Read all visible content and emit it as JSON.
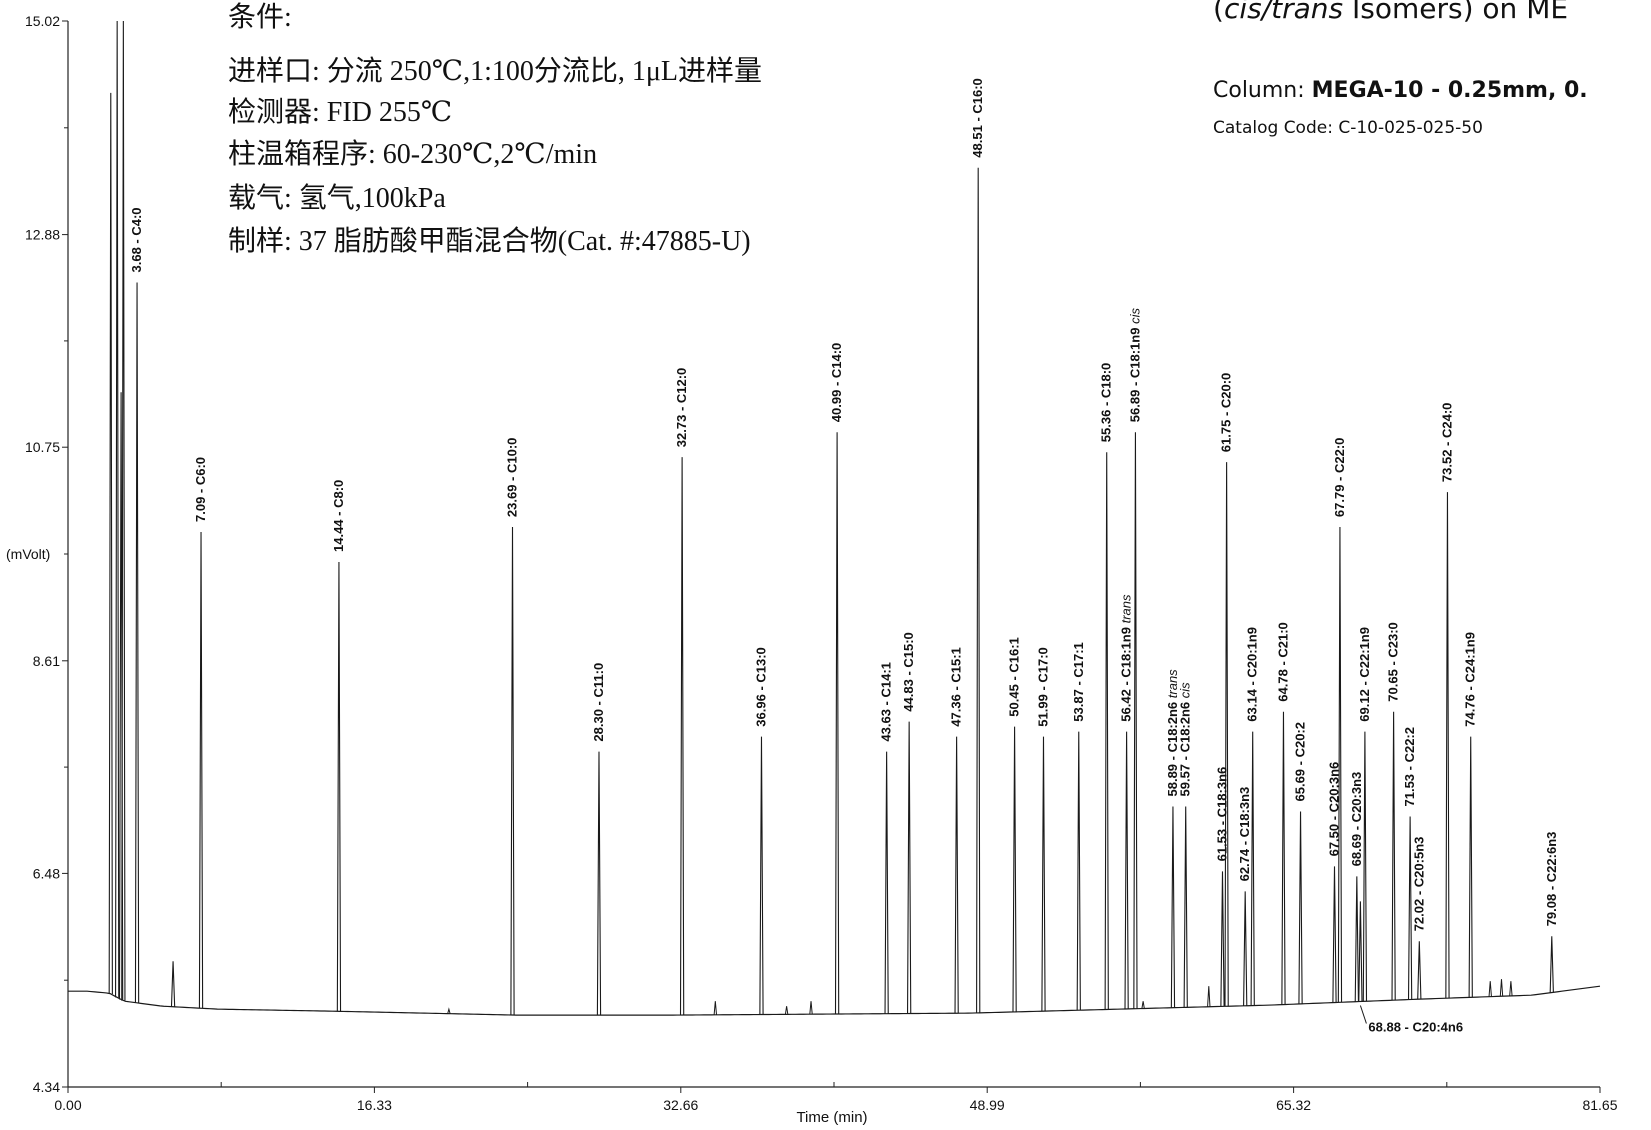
{
  "conditions": {
    "heading": "条件:",
    "lines": [
      "进样口: 分流 250℃,1:100分流比, 1μL进样量",
      "检测器: FID 255℃",
      "柱温箱程序: 60-230℃,2℃/min",
      "载气: 氢气,100kPa",
      "制样: 37 脂肪酸甲酯混合物(Cat. #:47885-U)"
    ]
  },
  "header": {
    "title_prefix": "(",
    "title_cis": "cis",
    "title_slash": "/",
    "title_trans": "trans",
    "title_rest": " Isomers) on ME",
    "column_label": "Column: ",
    "column_value": "MEGA-10 - 0.25mm, 0.",
    "catalog": "Catalog Code: C-10-025-025-50"
  },
  "chart_data": {
    "type": "line",
    "title": "",
    "xlabel": "Time (min)",
    "ylabel": "(mVolt)",
    "xlim": [
      0.0,
      81.65
    ],
    "ylim": [
      4.34,
      15.02
    ],
    "x_tick_labels": [
      "0.00",
      "16.33",
      "32.66",
      "48.99",
      "65.32",
      "81.65"
    ],
    "x_ticks": [
      0.0,
      16.33,
      32.66,
      48.99,
      65.32,
      81.65
    ],
    "y_tick_labels": [
      "4.34",
      "6.48",
      "8.61",
      "10.75",
      "12.88",
      "15.02"
    ],
    "y_ticks": [
      4.34,
      6.48,
      8.61,
      10.75,
      12.88,
      15.02
    ],
    "grid": false,
    "baseline": [
      [
        0.0,
        5.3
      ],
      [
        1.0,
        5.3
      ],
      [
        2.2,
        5.28
      ],
      [
        3.0,
        5.2
      ],
      [
        5.0,
        5.15
      ],
      [
        8.0,
        5.12
      ],
      [
        14.0,
        5.1
      ],
      [
        24.0,
        5.06
      ],
      [
        32.0,
        5.06
      ],
      [
        40.0,
        5.07
      ],
      [
        48.0,
        5.08
      ],
      [
        56.0,
        5.12
      ],
      [
        64.0,
        5.16
      ],
      [
        72.0,
        5.22
      ],
      [
        78.0,
        5.26
      ],
      [
        81.65,
        5.35
      ]
    ],
    "peaks": [
      {
        "t": 2.28,
        "h": 14.3,
        "label": ""
      },
      {
        "t": 2.62,
        "h": 15.02,
        "label": ""
      },
      {
        "t": 2.83,
        "h": 11.3,
        "label": ""
      },
      {
        "t": 2.95,
        "h": 15.02,
        "label": ""
      },
      {
        "t": 3.68,
        "h": 12.4,
        "label": "3.68 - C4:0"
      },
      {
        "t": 5.6,
        "h": 5.6,
        "label": ""
      },
      {
        "t": 7.09,
        "h": 9.9,
        "label": "7.09 - C6:0"
      },
      {
        "t": 14.44,
        "h": 9.6,
        "label": "14.44 - C8:0"
      },
      {
        "t": 23.69,
        "h": 9.95,
        "label": "23.69 - C10:0"
      },
      {
        "t": 28.3,
        "h": 7.7,
        "label": "28.30 - C11:0"
      },
      {
        "t": 32.73,
        "h": 10.65,
        "label": "32.73 - C12:0"
      },
      {
        "t": 36.96,
        "h": 7.85,
        "label": "36.96 - C13:0"
      },
      {
        "t": 40.99,
        "h": 10.9,
        "label": "40.99 - C14:0"
      },
      {
        "t": 43.63,
        "h": 7.7,
        "label": "43.63 - C14:1"
      },
      {
        "t": 44.83,
        "h": 8.0,
        "label": "44.83 - C15:0"
      },
      {
        "t": 47.36,
        "h": 7.85,
        "label": "47.36 - C15:1"
      },
      {
        "t": 48.51,
        "h": 13.55,
        "label": "48.51 - C16:0"
      },
      {
        "t": 50.45,
        "h": 7.95,
        "label": "50.45 - C16:1"
      },
      {
        "t": 51.99,
        "h": 7.85,
        "label": "51.99 - C17:0"
      },
      {
        "t": 53.87,
        "h": 7.9,
        "label": "53.87 - C17:1"
      },
      {
        "t": 55.36,
        "h": 10.7,
        "label": "55.36 - C18:0"
      },
      {
        "t": 56.42,
        "h": 7.9,
        "label": "56.42 - C18:1n9 trans"
      },
      {
        "t": 56.89,
        "h": 10.9,
        "label": "56.89 - C18:1n9 cis"
      },
      {
        "t": 58.89,
        "h": 7.15,
        "label": "58.89 - C18:2n6 trans"
      },
      {
        "t": 59.57,
        "h": 7.15,
        "label": "59.57 - C18:2n6 cis"
      },
      {
        "t": 61.53,
        "h": 6.5,
        "label": "61.53 - C18:3n6"
      },
      {
        "t": 61.75,
        "h": 10.6,
        "label": "61.75 - C20:0"
      },
      {
        "t": 62.74,
        "h": 6.3,
        "label": "62.74 - C18:3n3"
      },
      {
        "t": 63.14,
        "h": 7.9,
        "label": "63.14 - C20:1n9"
      },
      {
        "t": 64.78,
        "h": 8.1,
        "label": "64.78 - C21:0"
      },
      {
        "t": 65.69,
        "h": 7.1,
        "label": "65.69 - C20:2"
      },
      {
        "t": 67.5,
        "h": 6.55,
        "label": "67.50 - C20:3n6"
      },
      {
        "t": 67.79,
        "h": 9.95,
        "label": "67.79 - C22:0"
      },
      {
        "t": 68.69,
        "h": 6.45,
        "label": "68.69 - C20:3n3"
      },
      {
        "t": 68.88,
        "h": 6.2,
        "label": "68.88 - C20:4n6"
      },
      {
        "t": 69.12,
        "h": 7.9,
        "label": "69.12 - C22:1n9"
      },
      {
        "t": 70.65,
        "h": 8.1,
        "label": "70.65 - C23:0"
      },
      {
        "t": 71.53,
        "h": 7.05,
        "label": "71.53 - C22:2"
      },
      {
        "t": 72.02,
        "h": 5.8,
        "label": "72.02 - C20:5n3"
      },
      {
        "t": 73.52,
        "h": 10.3,
        "label": "73.52 - C24:0"
      },
      {
        "t": 74.76,
        "h": 7.85,
        "label": "74.76 - C24:1n9"
      },
      {
        "t": 79.08,
        "h": 5.85,
        "label": "79.08 - C22:6n3"
      }
    ],
    "minor_bumps": [
      {
        "t": 20.3,
        "h": 5.12
      },
      {
        "t": 34.5,
        "h": 5.2
      },
      {
        "t": 38.3,
        "h": 5.15
      },
      {
        "t": 39.6,
        "h": 5.2
      },
      {
        "t": 57.3,
        "h": 5.2
      },
      {
        "t": 60.8,
        "h": 5.35
      },
      {
        "t": 75.8,
        "h": 5.4
      },
      {
        "t": 76.4,
        "h": 5.42
      },
      {
        "t": 76.9,
        "h": 5.4
      }
    ],
    "colors": {
      "trace": "#1a1a1a",
      "axis": "#222222",
      "text": "#111111"
    }
  }
}
